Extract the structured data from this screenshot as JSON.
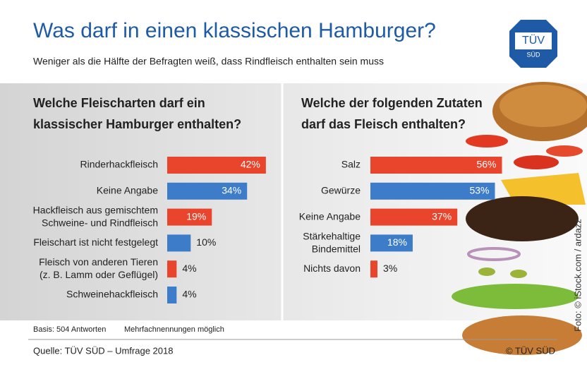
{
  "header": {
    "title": "Was darf in einen klassischen Hamburger?",
    "subtitle": "Weniger als die Hälfte der Befragten weiß, dass Rindfleisch enthalten sein muss"
  },
  "logo": {
    "top": "TÜV",
    "bottom": "SÜD"
  },
  "photo_credit": "Foto: © iStock.com / ardazz",
  "footer": {
    "basis": "Basis: 504 Antworten",
    "note": "Mehrfachnennungen möglich",
    "source": "Quelle: TÜV SÜD – Umfrage 2018",
    "copyright": "© TÜV SÜD"
  },
  "chart_data": [
    {
      "type": "bar",
      "title": "Welche Fleischarten darf ein\nklassischer Hamburger enthalten?",
      "categories": [
        "Rinderhackfleisch",
        "Keine Angabe",
        "Hackfleisch aus gemischtem\nSchweine- und Rindfleisch",
        "Fleischart ist nicht festgelegt",
        "Fleisch von anderen Tieren\n(z. B. Lamm oder Geflügel)",
        "Schweinehackfleisch"
      ],
      "values": [
        42,
        34,
        19,
        10,
        4,
        4
      ],
      "value_labels": [
        "42%",
        "34%",
        "19%",
        "10%",
        "4%",
        "4%"
      ],
      "colors": [
        "#e8452c",
        "#3d7cc9",
        "#e8452c",
        "#3d7cc9",
        "#e8452c",
        "#3d7cc9"
      ]
    },
    {
      "type": "bar",
      "title": "Welche der folgenden Zutaten\ndarf das Fleisch enthalten?",
      "categories": [
        "Salz",
        "Gewürze",
        "Keine Angabe",
        "Stärkehaltige\nBindemittel",
        "Nichts davon"
      ],
      "values": [
        56,
        53,
        37,
        18,
        3
      ],
      "value_labels": [
        "56%",
        "53%",
        "37%",
        "18%",
        "3%"
      ],
      "colors": [
        "#e8452c",
        "#3d7cc9",
        "#e8452c",
        "#3d7cc9",
        "#e8452c"
      ]
    }
  ]
}
